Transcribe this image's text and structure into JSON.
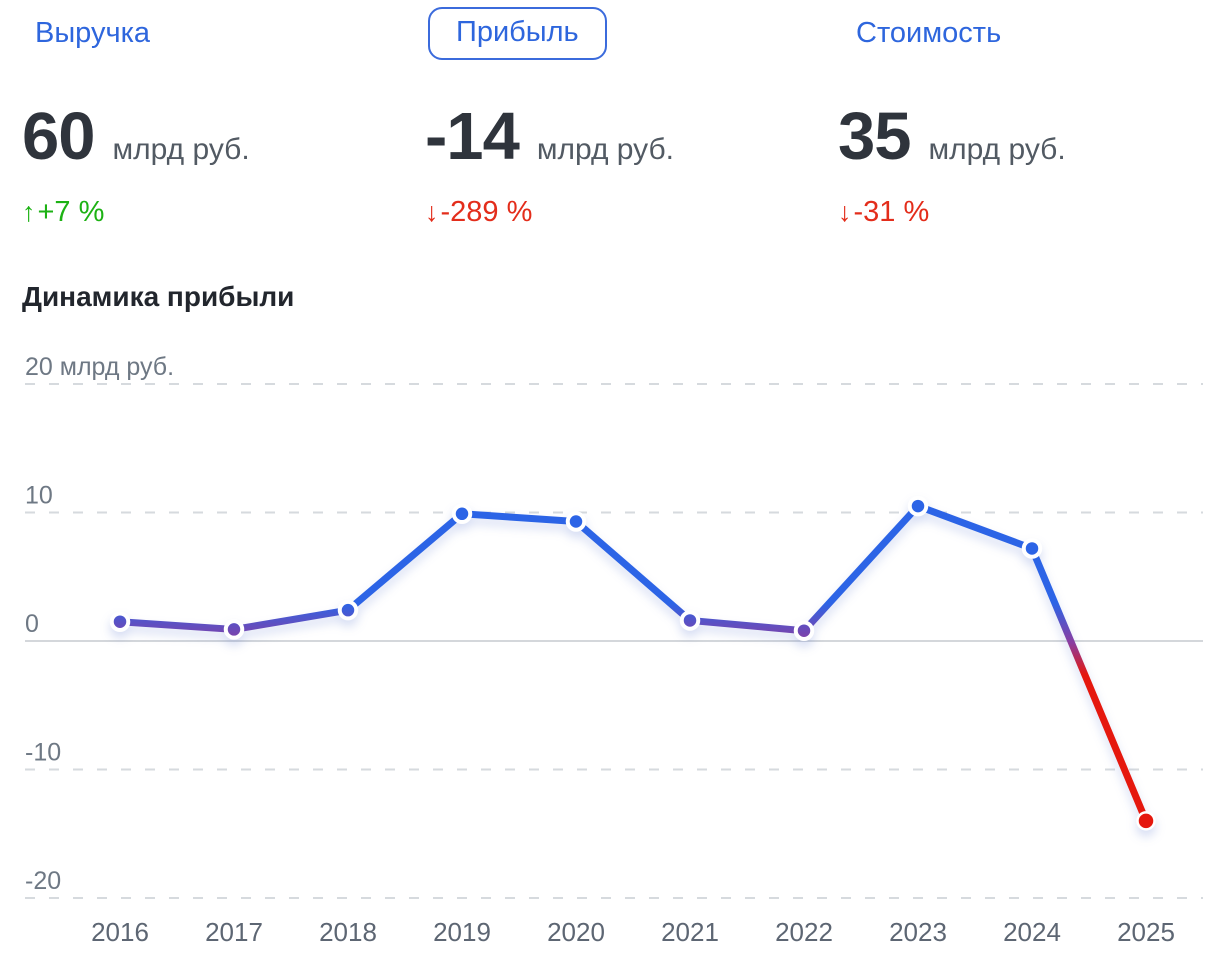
{
  "metrics": [
    {
      "label": "Выручка",
      "value": "60",
      "unit": "млрд руб.",
      "arrow": "↑",
      "change": "+7 %",
      "direction": "up",
      "selected": false
    },
    {
      "label": "Прибыль",
      "value": "-14",
      "unit": "млрд руб.",
      "arrow": "↓",
      "change": "-289 %",
      "direction": "down",
      "selected": true
    },
    {
      "label": "Стоимость",
      "value": "35",
      "unit": "млрд руб.",
      "arrow": "↓",
      "change": "-31 %",
      "direction": "down",
      "selected": false
    }
  ],
  "colors": {
    "accent_blue": "#2e66dd",
    "positive_green": "#1db214",
    "negative_red": "#e32d1b",
    "line_blue": "#2c64e6",
    "line_red": "#e5180e",
    "grid": "#d6dade",
    "zero_line": "#d4d7db",
    "y_label": "#6e7884",
    "x_label": "#5d6673"
  },
  "chart_data": {
    "type": "line",
    "title": "Динамика прибыли",
    "x": [
      "2016",
      "2017",
      "2018",
      "2019",
      "2020",
      "2021",
      "2022",
      "2023",
      "2024",
      "2025"
    ],
    "values": [
      1.5,
      0.9,
      2.4,
      9.9,
      9.3,
      1.6,
      0.8,
      10.5,
      7.2,
      -14
    ],
    "series_name": "Прибыль, млрд руб.",
    "xlabel": "",
    "ylabel": "млрд руб.",
    "ylim": [
      -20,
      20
    ],
    "yticks": [
      {
        "value": 20,
        "label": "20 млрд руб."
      },
      {
        "value": 10,
        "label": "10"
      },
      {
        "value": 0,
        "label": "0"
      },
      {
        "value": -10,
        "label": "-10"
      },
      {
        "value": -20,
        "label": "-20"
      }
    ],
    "grid": "horizontal dashed, solid zero line",
    "legend": "none",
    "annotation": "last point (2025) highlighted red, line gradient turns red below zero"
  }
}
